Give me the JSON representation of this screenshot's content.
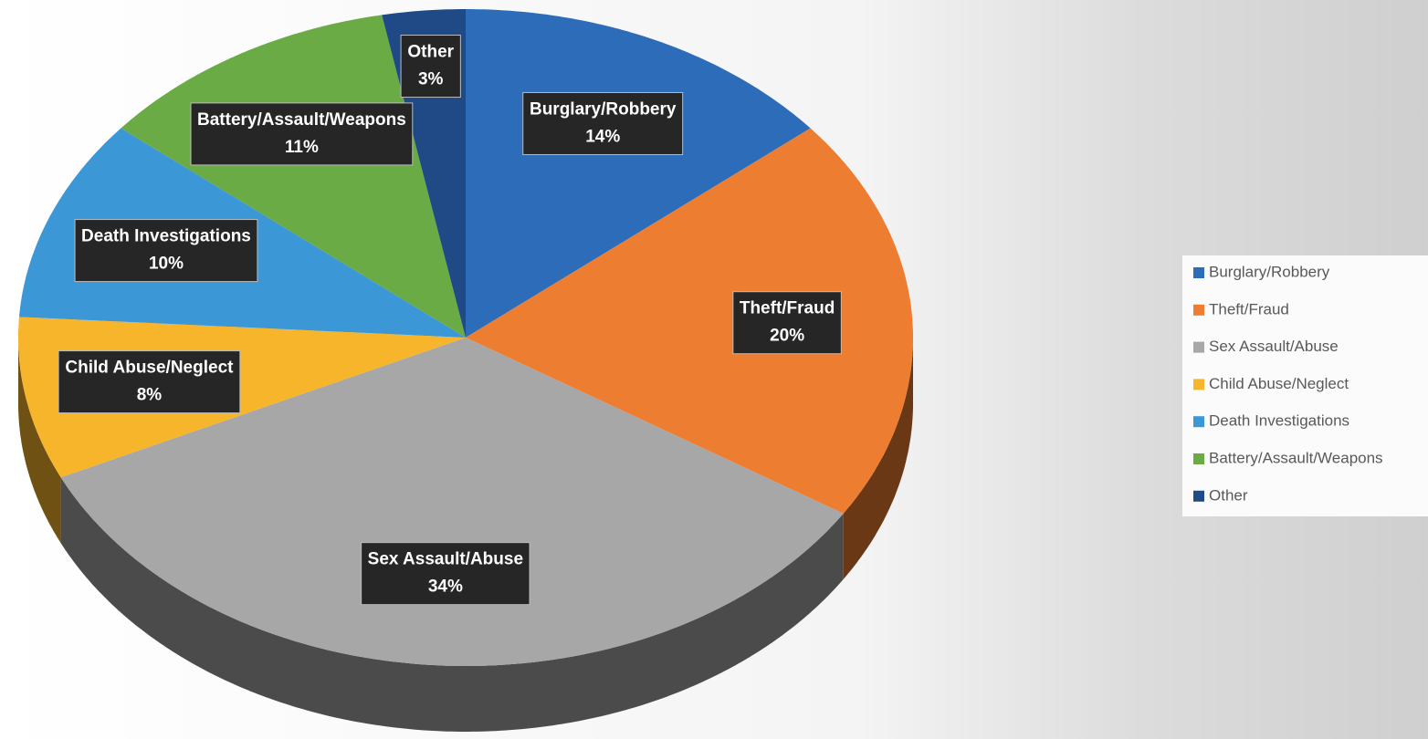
{
  "chart_data": {
    "type": "pie",
    "categories": [
      "Burglary/Robbery",
      "Theft/Fraud",
      "Sex Assault/Abuse",
      "Child Abuse/Neglect",
      "Death Investigations",
      "Battery/Assault/Weapons",
      "Other"
    ],
    "values": [
      14,
      20,
      34,
      8,
      10,
      11,
      3
    ],
    "value_labels": [
      "14%",
      "20%",
      "34%",
      "8%",
      "10%",
      "11%",
      "3%"
    ],
    "colors": [
      "#2c6cb8",
      "#ed7d31",
      "#a7a7a7",
      "#f7b52c",
      "#3b97d6",
      "#6aab46",
      "#1f4a86"
    ],
    "legend": "right"
  }
}
